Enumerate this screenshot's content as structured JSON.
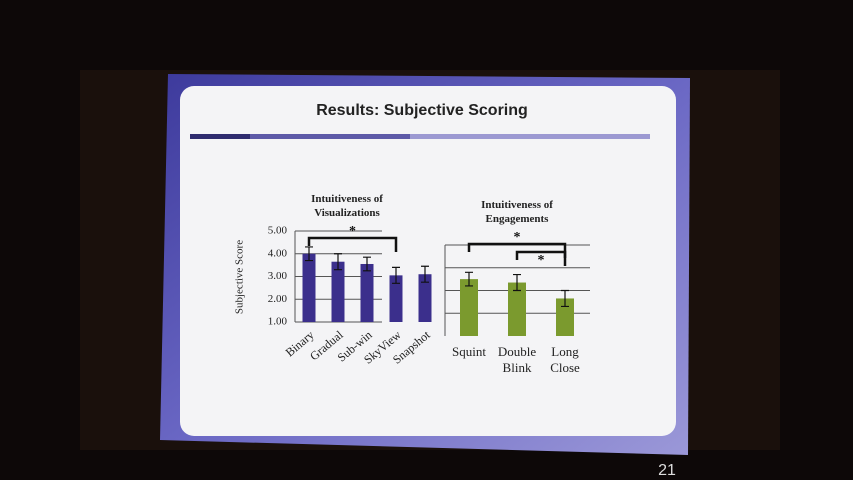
{
  "slide_title": "Results: Subjective Scoring",
  "page_number": "21",
  "y_axis_label": "Subjective Score",
  "chart_data": [
    {
      "type": "bar",
      "title": "Intuitiveness of Visualizations",
      "categories": [
        "Binary",
        "Gradual",
        "Sub-win",
        "SkyView",
        "Snapshot"
      ],
      "values": [
        4.0,
        3.65,
        3.55,
        3.05,
        3.1
      ],
      "errors": [
        0.3,
        0.35,
        0.3,
        0.35,
        0.35
      ],
      "color": "#3b2f8c",
      "ylim": [
        1,
        5
      ],
      "yticks": [
        {
          "value": 1,
          "label": "1.00"
        },
        {
          "value": 2,
          "label": "2.00"
        },
        {
          "value": 3,
          "label": "3.00"
        },
        {
          "value": 4,
          "label": "4.00"
        },
        {
          "value": 5,
          "label": "5.00"
        }
      ],
      "grid": true,
      "annotations": [
        "*"
      ]
    },
    {
      "type": "bar",
      "title": "Intuitiveness of Engagements",
      "categories": [
        "Squint",
        "Double Blink",
        "Long Close"
      ],
      "values": [
        3.5,
        3.35,
        2.65
      ],
      "errors": [
        0.3,
        0.35,
        0.35
      ],
      "color": "#7b9a2e",
      "ylim": [
        1,
        5
      ],
      "yticks": [
        2,
        3,
        4,
        5
      ],
      "grid": true,
      "annotations": [
        "*",
        "*"
      ]
    }
  ]
}
